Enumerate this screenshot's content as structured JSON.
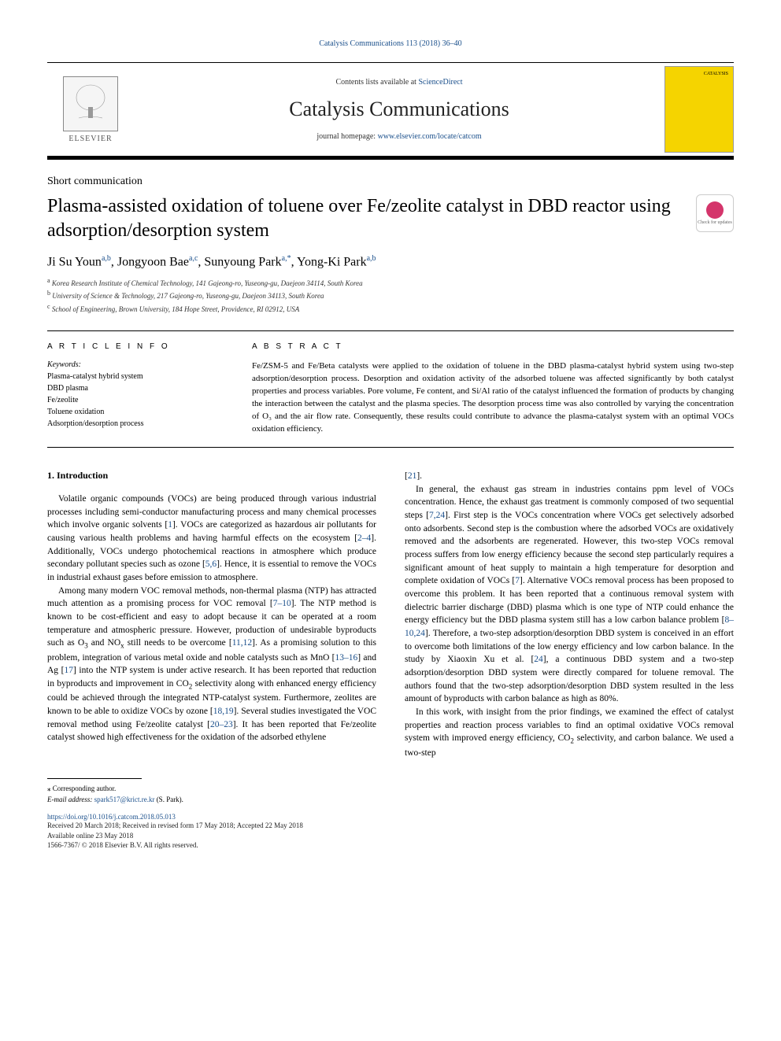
{
  "header": {
    "journal_ref_prefix": "Catalysis Communications 113 (2018) 36–40",
    "contents_prefix": "Contents lists available at ",
    "contents_link": "ScienceDirect",
    "journal_title": "Catalysis Communications",
    "homepage_prefix": "journal homepage: ",
    "homepage_link": "www.elsevier.com/locate/catcom",
    "elsevier_label": "ELSEVIER",
    "cover_label": "CATALYSIS"
  },
  "article": {
    "type": "Short communication",
    "title": "Plasma-assisted oxidation of toluene over Fe/zeolite catalyst in DBD reactor using adsorption/desorption system",
    "check_updates": "Check for updates",
    "authors_html": "Ji Su Youn<sup>a,b</sup>, Jongyoon Bae<sup>a,c</sup>, Sunyoung Park<sup>a,*</sup>, Yong-Ki Park<sup>a,b</sup>",
    "affiliations": {
      "a": "Korea Research Institute of Chemical Technology, 141 Gajeong-ro, Yuseong-gu, Daejeon 34114, South Korea",
      "b": "University of Science & Technology, 217 Gajeong-ro, Yuseong-gu, Daejeon 34113, South Korea",
      "c": "School of Engineering, Brown University, 184 Hope Street, Providence, RI 02912, USA"
    }
  },
  "info": {
    "heading": "A R T I C L E  I N F O",
    "keywords_label": "Keywords:",
    "keywords": [
      "Plasma-catalyst hybrid system",
      "DBD plasma",
      "Fe/zeolite",
      "Toluene oxidation",
      "Adsorption/desorption process"
    ]
  },
  "abstract": {
    "heading": "A B S T R A C T",
    "text": "Fe/ZSM-5 and Fe/Beta catalysts were applied to the oxidation of toluene in the DBD plasma-catalyst hybrid system using two-step adsorption/desorption process. Desorption and oxidation activity of the adsorbed toluene was affected significantly by both catalyst properties and process variables. Pore volume, Fe content, and Si/Al ratio of the catalyst influenced the formation of products by changing the interaction between the catalyst and the plasma species. The desorption process time was also controlled by varying the concentration of O₃ and the air flow rate. Consequently, these results could contribute to advance the plasma-catalyst system with an optimal VOCs oxidation efficiency."
  },
  "body": {
    "section1_heading": "1. Introduction",
    "col1": {
      "p1": "Volatile organic compounds (VOCs) are being produced through various industrial processes including semi-conductor manufacturing process and many chemical processes which involve organic solvents [1]. VOCs are categorized as hazardous air pollutants for causing various health problems and having harmful effects on the ecosystem [2–4]. Additionally, VOCs undergo photochemical reactions in atmosphere which produce secondary pollutant species such as ozone [5,6]. Hence, it is essential to remove the VOCs in industrial exhaust gases before emission to atmosphere.",
      "p2": "Among many modern VOC removal methods, non-thermal plasma (NTP) has attracted much attention as a promising process for VOC removal [7–10]. The NTP method is known to be cost-efficient and easy to adopt because it can be operated at a room temperature and atmospheric pressure. However, production of undesirable byproducts such as O₃ and NOₓ still needs to be overcome [11,12]. As a promising solution to this problem, integration of various metal oxide and noble catalysts such as MnO [13–16] and Ag [17] into the NTP system is under active research. It has been reported that reduction in byproducts and improvement in CO₂ selectivity along with enhanced energy efficiency could be achieved through the integrated NTP-catalyst system. Furthermore, zeolites are known to be able to oxidize VOCs by ozone [18,19]. Several studies investigated the VOC removal method using Fe/zeolite catalyst [20–23]. It has been reported that Fe/zeolite catalyst showed high effectiveness for the oxidation of the adsorbed ethylene"
    },
    "col2": {
      "p1_lead": "[21].",
      "p2": "In general, the exhaust gas stream in industries contains ppm level of VOCs concentration. Hence, the exhaust gas treatment is commonly composed of two sequential steps [7,24]. First step is the VOCs concentration where VOCs get selectively adsorbed onto adsorbents. Second step is the combustion where the adsorbed VOCs are oxidatively removed and the adsorbents are regenerated. However, this two-step VOCs removal process suffers from low energy efficiency because the second step particularly requires a significant amount of heat supply to maintain a high temperature for desorption and complete oxidation of VOCs [7]. Alternative VOCs removal process has been proposed to overcome this problem. It has been reported that a continuous removal system with dielectric barrier discharge (DBD) plasma which is one type of NTP could enhance the energy efficiency but the DBD plasma system still has a low carbon balance problem [8–10,24]. Therefore, a two-step adsorption/desorption DBD system is conceived in an effort to overcome both limitations of the low energy efficiency and low carbon balance. In the study by Xiaoxin Xu et al. [24], a continuous DBD system and a two-step adsorption/desorption DBD system were directly compared for toluene removal. The authors found that the two-step adsorption/desorption DBD system resulted in the less amount of byproducts with carbon balance as high as 80%.",
      "p3": "In this work, with insight from the prior findings, we examined the effect of catalyst properties and reaction process variables to find an optimal oxidative VOCs removal system with improved energy efficiency, CO₂ selectivity, and carbon balance. We used a two-step"
    }
  },
  "footer": {
    "corresponding": "⁎ Corresponding author.",
    "email_label": "E-mail address: ",
    "email": "spark517@krict.re.kr",
    "email_suffix": " (S. Park).",
    "doi": "https://doi.org/10.1016/j.catcom.2018.05.013",
    "history": "Received 20 March 2018; Received in revised form 17 May 2018; Accepted 22 May 2018",
    "available": "Available online 23 May 2018",
    "copyright": "1566-7367/ © 2018 Elsevier B.V. All rights reserved."
  },
  "colors": {
    "link": "#1a4f8b",
    "cover_bg": "#f5d400",
    "check_icon": "#d4356b"
  }
}
